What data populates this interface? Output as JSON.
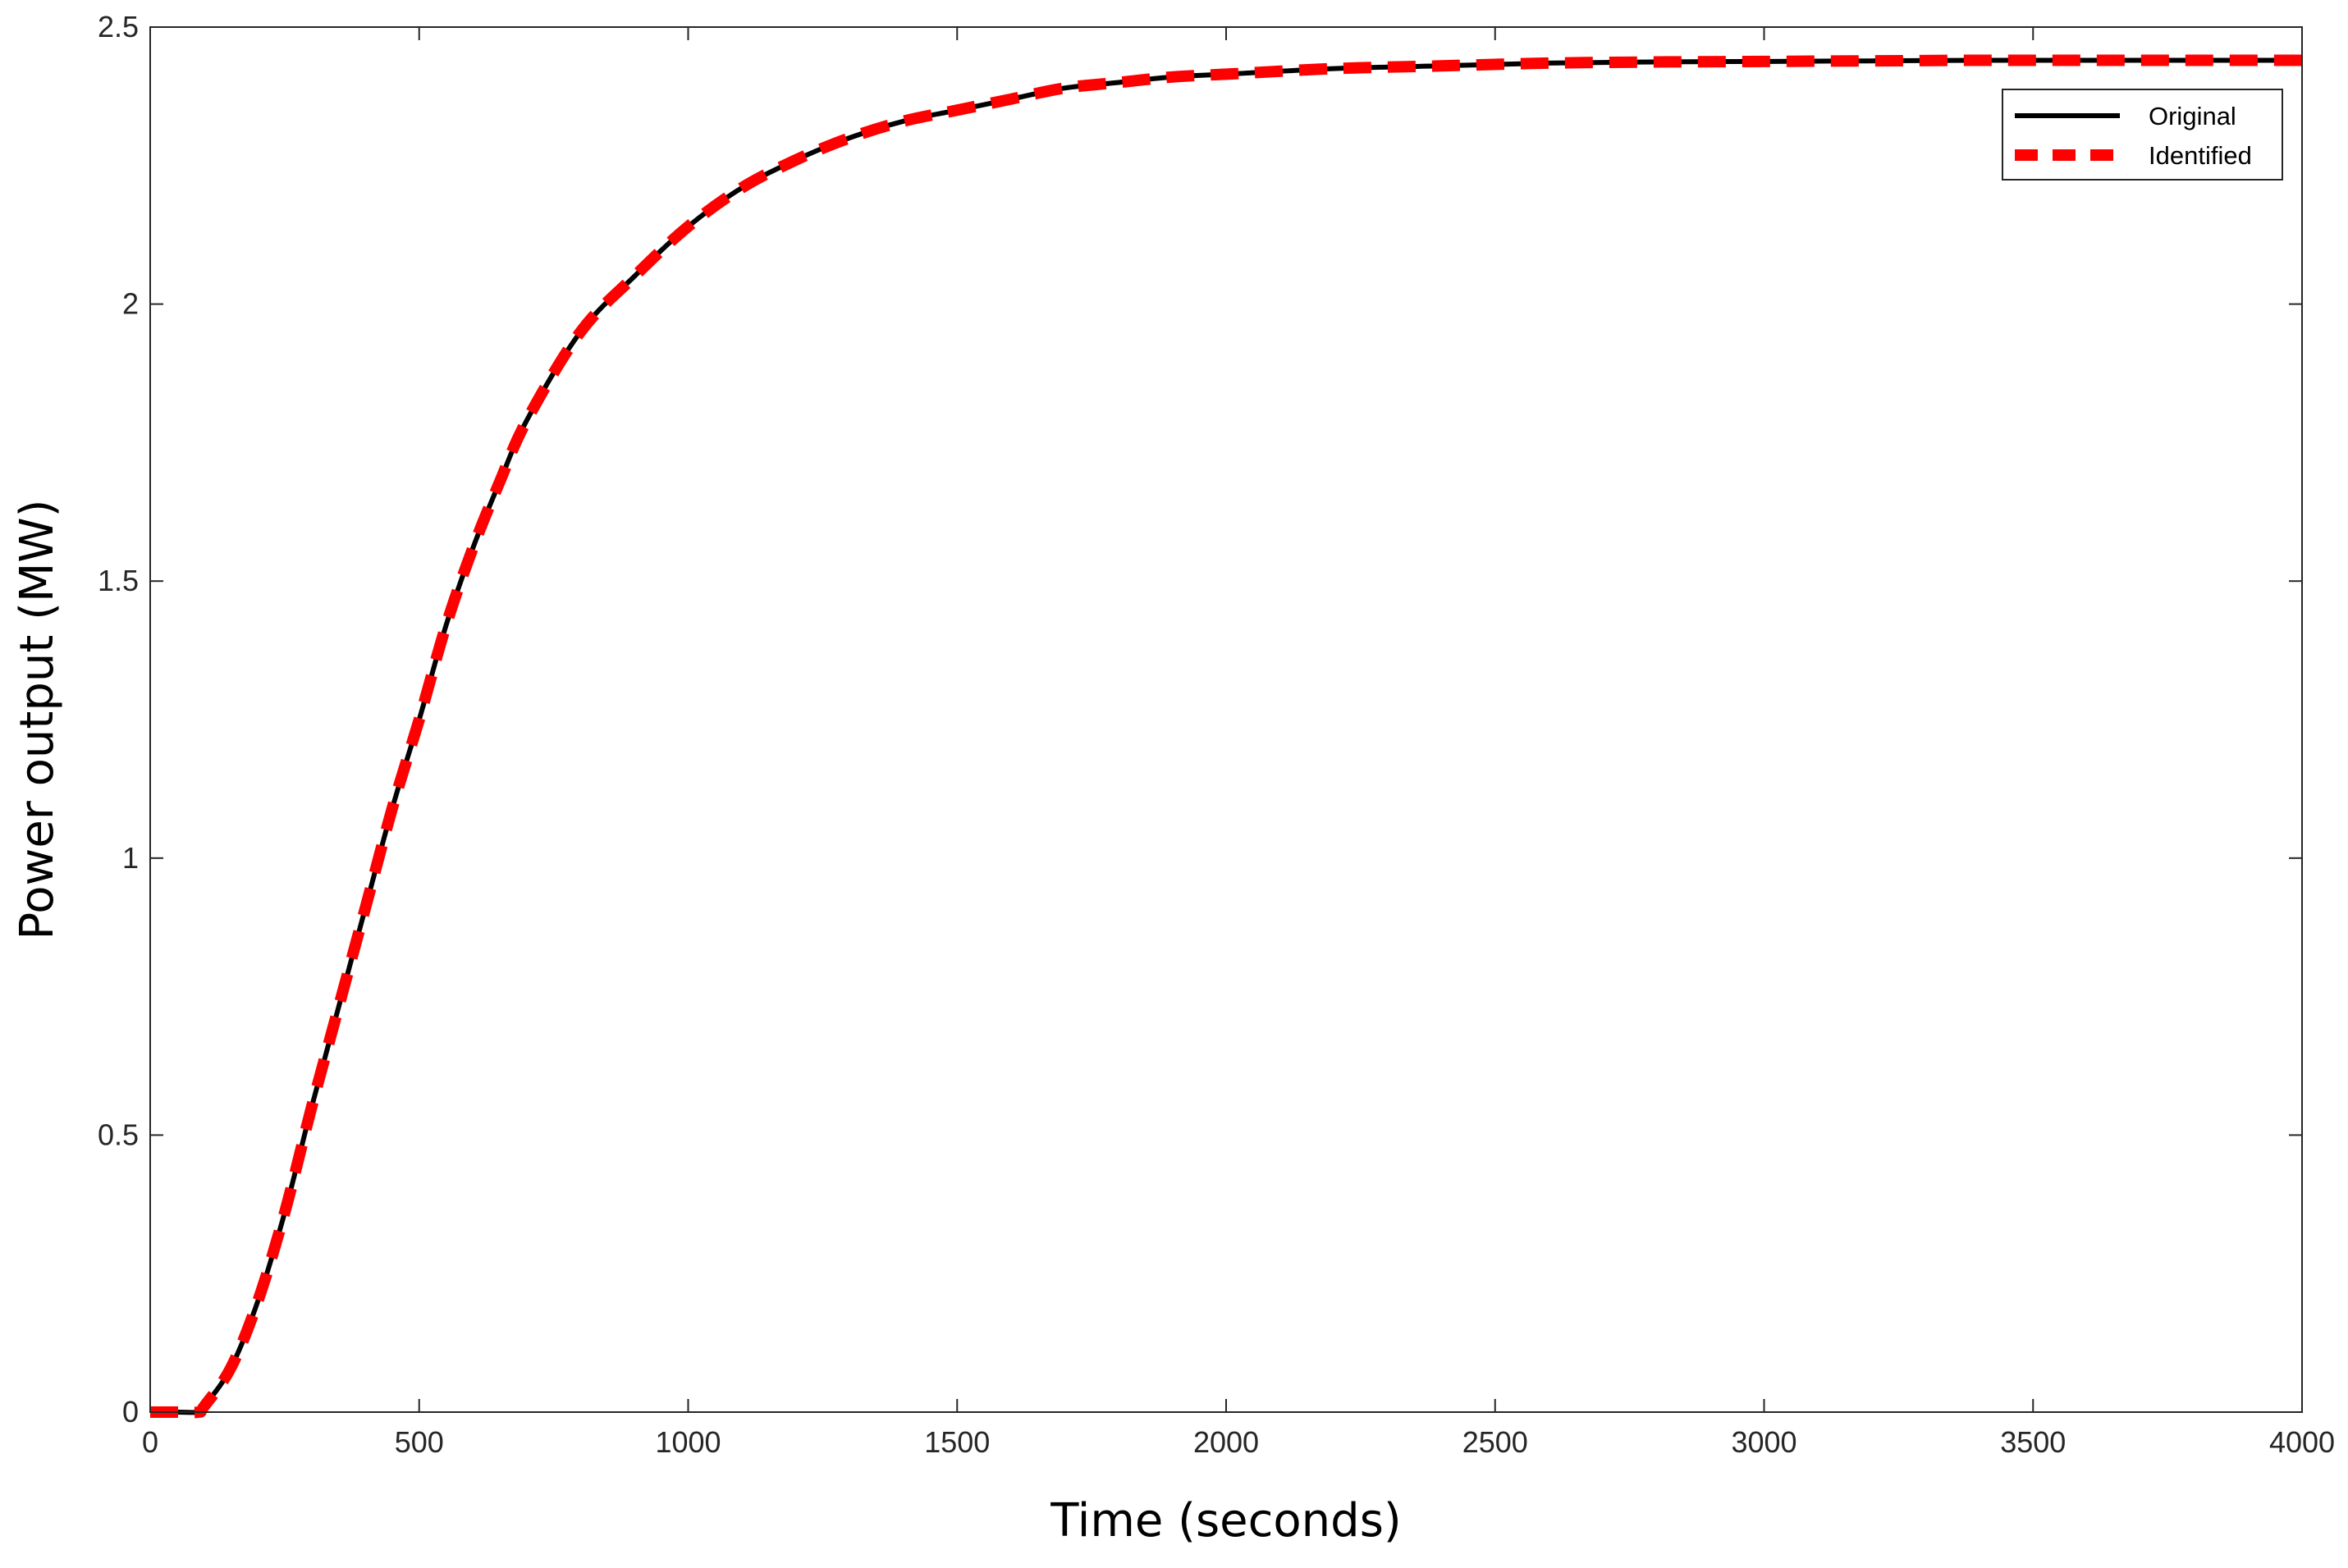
{
  "chart_data": {
    "type": "line",
    "title": "",
    "xlabel": "Time (seconds)",
    "ylabel": "Power output (MW)",
    "xlim": [
      0,
      4000
    ],
    "ylim": [
      0,
      2.5
    ],
    "xticks": [
      0,
      500,
      1000,
      1500,
      2000,
      2500,
      3000,
      3500,
      4000
    ],
    "yticks": [
      0,
      0.5,
      1,
      1.5,
      2,
      2.5
    ],
    "xtick_labels": [
      "0",
      "500",
      "1000",
      "1500",
      "2000",
      "2500",
      "3000",
      "3500",
      "4000"
    ],
    "ytick_labels": [
      "0",
      "0.5",
      "1",
      "1.5",
      "2",
      "2.5"
    ],
    "grid": false,
    "legend_position": "top-right",
    "x": [
      0,
      50,
      90,
      100,
      150,
      200,
      250,
      300,
      350,
      400,
      450,
      500,
      550,
      600,
      650,
      700,
      800,
      900,
      1000,
      1100,
      1200,
      1300,
      1400,
      1500,
      1600,
      1700,
      1800,
      1900,
      2000,
      2200,
      2400,
      2600,
      2800,
      3000,
      3200,
      3400,
      3600,
      3800,
      4000
    ],
    "series": [
      {
        "name": "Original",
        "color": "#000000",
        "style": "solid",
        "values": [
          0,
          0,
          0,
          0.01,
          0.08,
          0.2,
          0.36,
          0.55,
          0.73,
          0.91,
          1.09,
          1.25,
          1.42,
          1.56,
          1.68,
          1.79,
          1.95,
          2.05,
          2.14,
          2.21,
          2.26,
          2.3,
          2.33,
          2.35,
          2.37,
          2.39,
          2.4,
          2.41,
          2.415,
          2.425,
          2.43,
          2.435,
          2.437,
          2.438,
          2.439,
          2.44,
          2.44,
          2.44,
          2.44
        ]
      },
      {
        "name": "Identified",
        "color": "#ff0000",
        "style": "dashed",
        "values": [
          0,
          0,
          0,
          0.01,
          0.08,
          0.2,
          0.36,
          0.55,
          0.73,
          0.91,
          1.09,
          1.25,
          1.42,
          1.56,
          1.68,
          1.79,
          1.95,
          2.05,
          2.14,
          2.21,
          2.26,
          2.3,
          2.33,
          2.35,
          2.37,
          2.39,
          2.4,
          2.41,
          2.415,
          2.425,
          2.43,
          2.435,
          2.437,
          2.438,
          2.439,
          2.44,
          2.44,
          2.44,
          2.44
        ]
      }
    ]
  }
}
